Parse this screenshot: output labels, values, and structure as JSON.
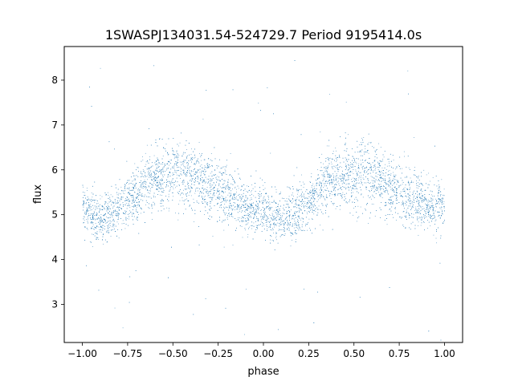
{
  "chart_data": {
    "type": "scatter",
    "title": "1SWASPJ134031.54-524729.7 Period 9195414.0s",
    "xlabel": "phase",
    "ylabel": "flux",
    "xlim": [
      -1.1,
      1.1
    ],
    "ylim": [
      2.15,
      8.75
    ],
    "xticks": [
      -1.0,
      -0.75,
      -0.5,
      -0.25,
      0.0,
      0.25,
      0.5,
      0.75,
      1.0
    ],
    "xtick_labels": [
      "−1.00",
      "−0.75",
      "−0.50",
      "−0.25",
      "0.00",
      "0.25",
      "0.50",
      "0.75",
      "1.00"
    ],
    "yticks": [
      3,
      4,
      5,
      6,
      7,
      8
    ],
    "ytick_labels": [
      "3",
      "4",
      "5",
      "6",
      "7",
      "8"
    ],
    "grid": false,
    "legend": "none",
    "marker_color": "#1f77b4",
    "series": [
      {
        "phase": [
          -1.0,
          -0.95,
          -0.9,
          -0.85,
          -0.8,
          -0.75,
          -0.7,
          -0.65,
          -0.6,
          -0.55,
          -0.5,
          -0.45,
          -0.4,
          -0.35,
          -0.3,
          -0.25,
          -0.2,
          -0.15,
          -0.1,
          -0.05,
          0.0,
          0.05,
          0.1,
          0.15,
          0.2,
          0.25,
          0.3,
          0.35,
          0.4,
          0.45,
          0.5,
          0.55,
          0.6,
          0.65,
          0.7,
          0.75,
          0.8,
          0.85,
          0.9,
          0.95,
          1.0
        ],
        "flux_median": [
          5.2,
          5.0,
          4.9,
          5.0,
          5.1,
          5.3,
          5.5,
          5.7,
          5.8,
          5.9,
          5.9,
          5.9,
          5.8,
          5.8,
          5.6,
          5.5,
          5.4,
          5.3,
          5.2,
          5.1,
          5.1,
          5.0,
          4.9,
          5.0,
          5.1,
          5.3,
          5.5,
          5.7,
          5.8,
          5.9,
          5.9,
          5.9,
          5.8,
          5.8,
          5.6,
          5.5,
          5.4,
          5.3,
          5.2,
          5.1,
          5.2
        ],
        "flux_spread": [
          0.5,
          0.5,
          0.5,
          0.5,
          0.5,
          0.5,
          0.55,
          0.6,
          0.6,
          0.65,
          0.7,
          0.7,
          0.7,
          0.65,
          0.65,
          0.6,
          0.6,
          0.55,
          0.5,
          0.5,
          0.5,
          0.5,
          0.5,
          0.5,
          0.5,
          0.5,
          0.55,
          0.6,
          0.6,
          0.65,
          0.7,
          0.7,
          0.7,
          0.65,
          0.65,
          0.6,
          0.6,
          0.55,
          0.5,
          0.5,
          0.5
        ]
      }
    ]
  }
}
